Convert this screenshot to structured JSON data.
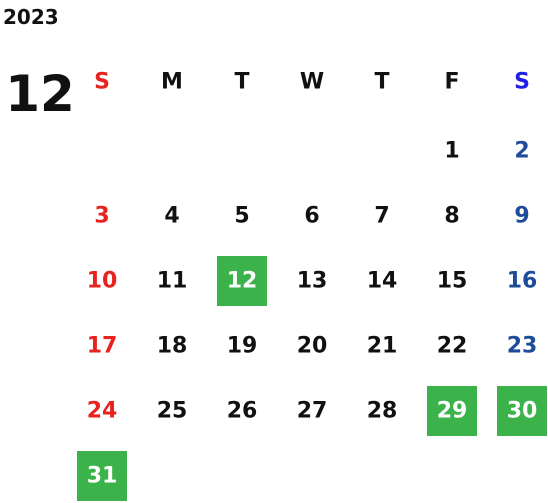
{
  "year": "2023",
  "month": "12",
  "weekdays": [
    "S",
    "M",
    "T",
    "W",
    "T",
    "F",
    "S"
  ],
  "colors": {
    "sunday": "#e8231f",
    "saturday_header": "#1f1fe6",
    "saturday": "#1f4c9a",
    "weekday": "#111111",
    "highlight": "#3bb34a",
    "highlight_text": "#ffffff"
  },
  "weeks": [
    [
      null,
      null,
      null,
      null,
      null,
      {
        "day": "1"
      },
      {
        "day": "2"
      }
    ],
    [
      {
        "day": "3"
      },
      {
        "day": "4"
      },
      {
        "day": "5"
      },
      {
        "day": "6"
      },
      {
        "day": "7"
      },
      {
        "day": "8"
      },
      {
        "day": "9"
      }
    ],
    [
      {
        "day": "10"
      },
      {
        "day": "11"
      },
      {
        "day": "12",
        "highlight": true
      },
      {
        "day": "13"
      },
      {
        "day": "14"
      },
      {
        "day": "15"
      },
      {
        "day": "16"
      }
    ],
    [
      {
        "day": "17"
      },
      {
        "day": "18"
      },
      {
        "day": "19"
      },
      {
        "day": "20"
      },
      {
        "day": "21"
      },
      {
        "day": "22"
      },
      {
        "day": "23"
      }
    ],
    [
      {
        "day": "24"
      },
      {
        "day": "25"
      },
      {
        "day": "26"
      },
      {
        "day": "27"
      },
      {
        "day": "28"
      },
      {
        "day": "29",
        "highlight": true
      },
      {
        "day": "30",
        "highlight": true
      }
    ],
    [
      {
        "day": "31",
        "highlight": true
      },
      null,
      null,
      null,
      null,
      null,
      null
    ]
  ]
}
